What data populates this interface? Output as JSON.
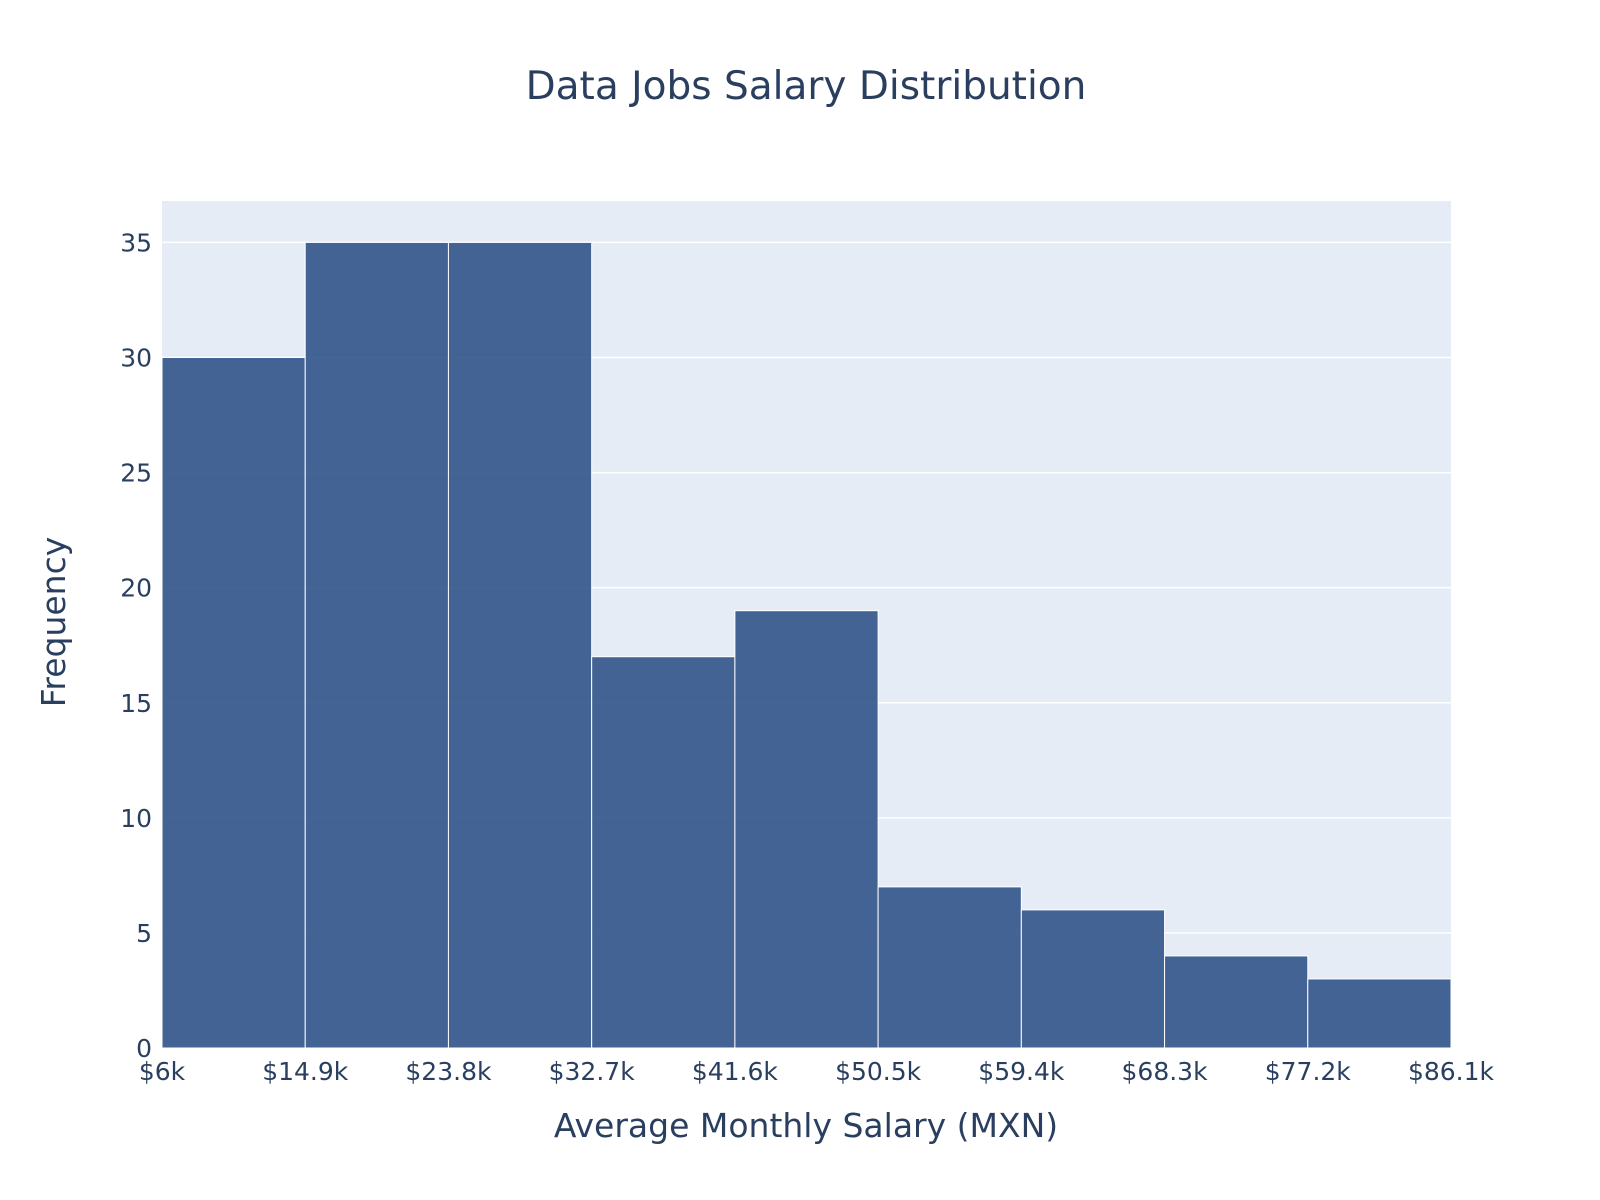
{
  "chart_data": {
    "type": "histogram",
    "title": "Data Jobs Salary Distribution",
    "xlabel": "Average Monthly Salary (MXN)",
    "ylabel": "Frequency",
    "bin_edges": [
      6000,
      14900,
      23800,
      32700,
      41600,
      50500,
      59400,
      68300,
      77200,
      86100
    ],
    "x_tick_labels": [
      "$6k",
      "$14.9k",
      "$23.8k",
      "$32.7k",
      "$41.6k",
      "$50.5k",
      "$59.4k",
      "$68.3k",
      "$77.2k",
      "$86.1k"
    ],
    "values": [
      30,
      35,
      35,
      17,
      19,
      7,
      6,
      4,
      3
    ],
    "y_ticks": [
      0,
      5,
      10,
      15,
      20,
      25,
      30,
      35
    ],
    "ylim": [
      0,
      36.8
    ],
    "xlim": [
      6000,
      86100
    ],
    "grid": true,
    "colors": {
      "bar": "#2c5086",
      "bar_border": "#ffffff",
      "plot_bg": "#e5ecf6",
      "grid": "#ffffff",
      "text": "#2a3f5f"
    }
  }
}
